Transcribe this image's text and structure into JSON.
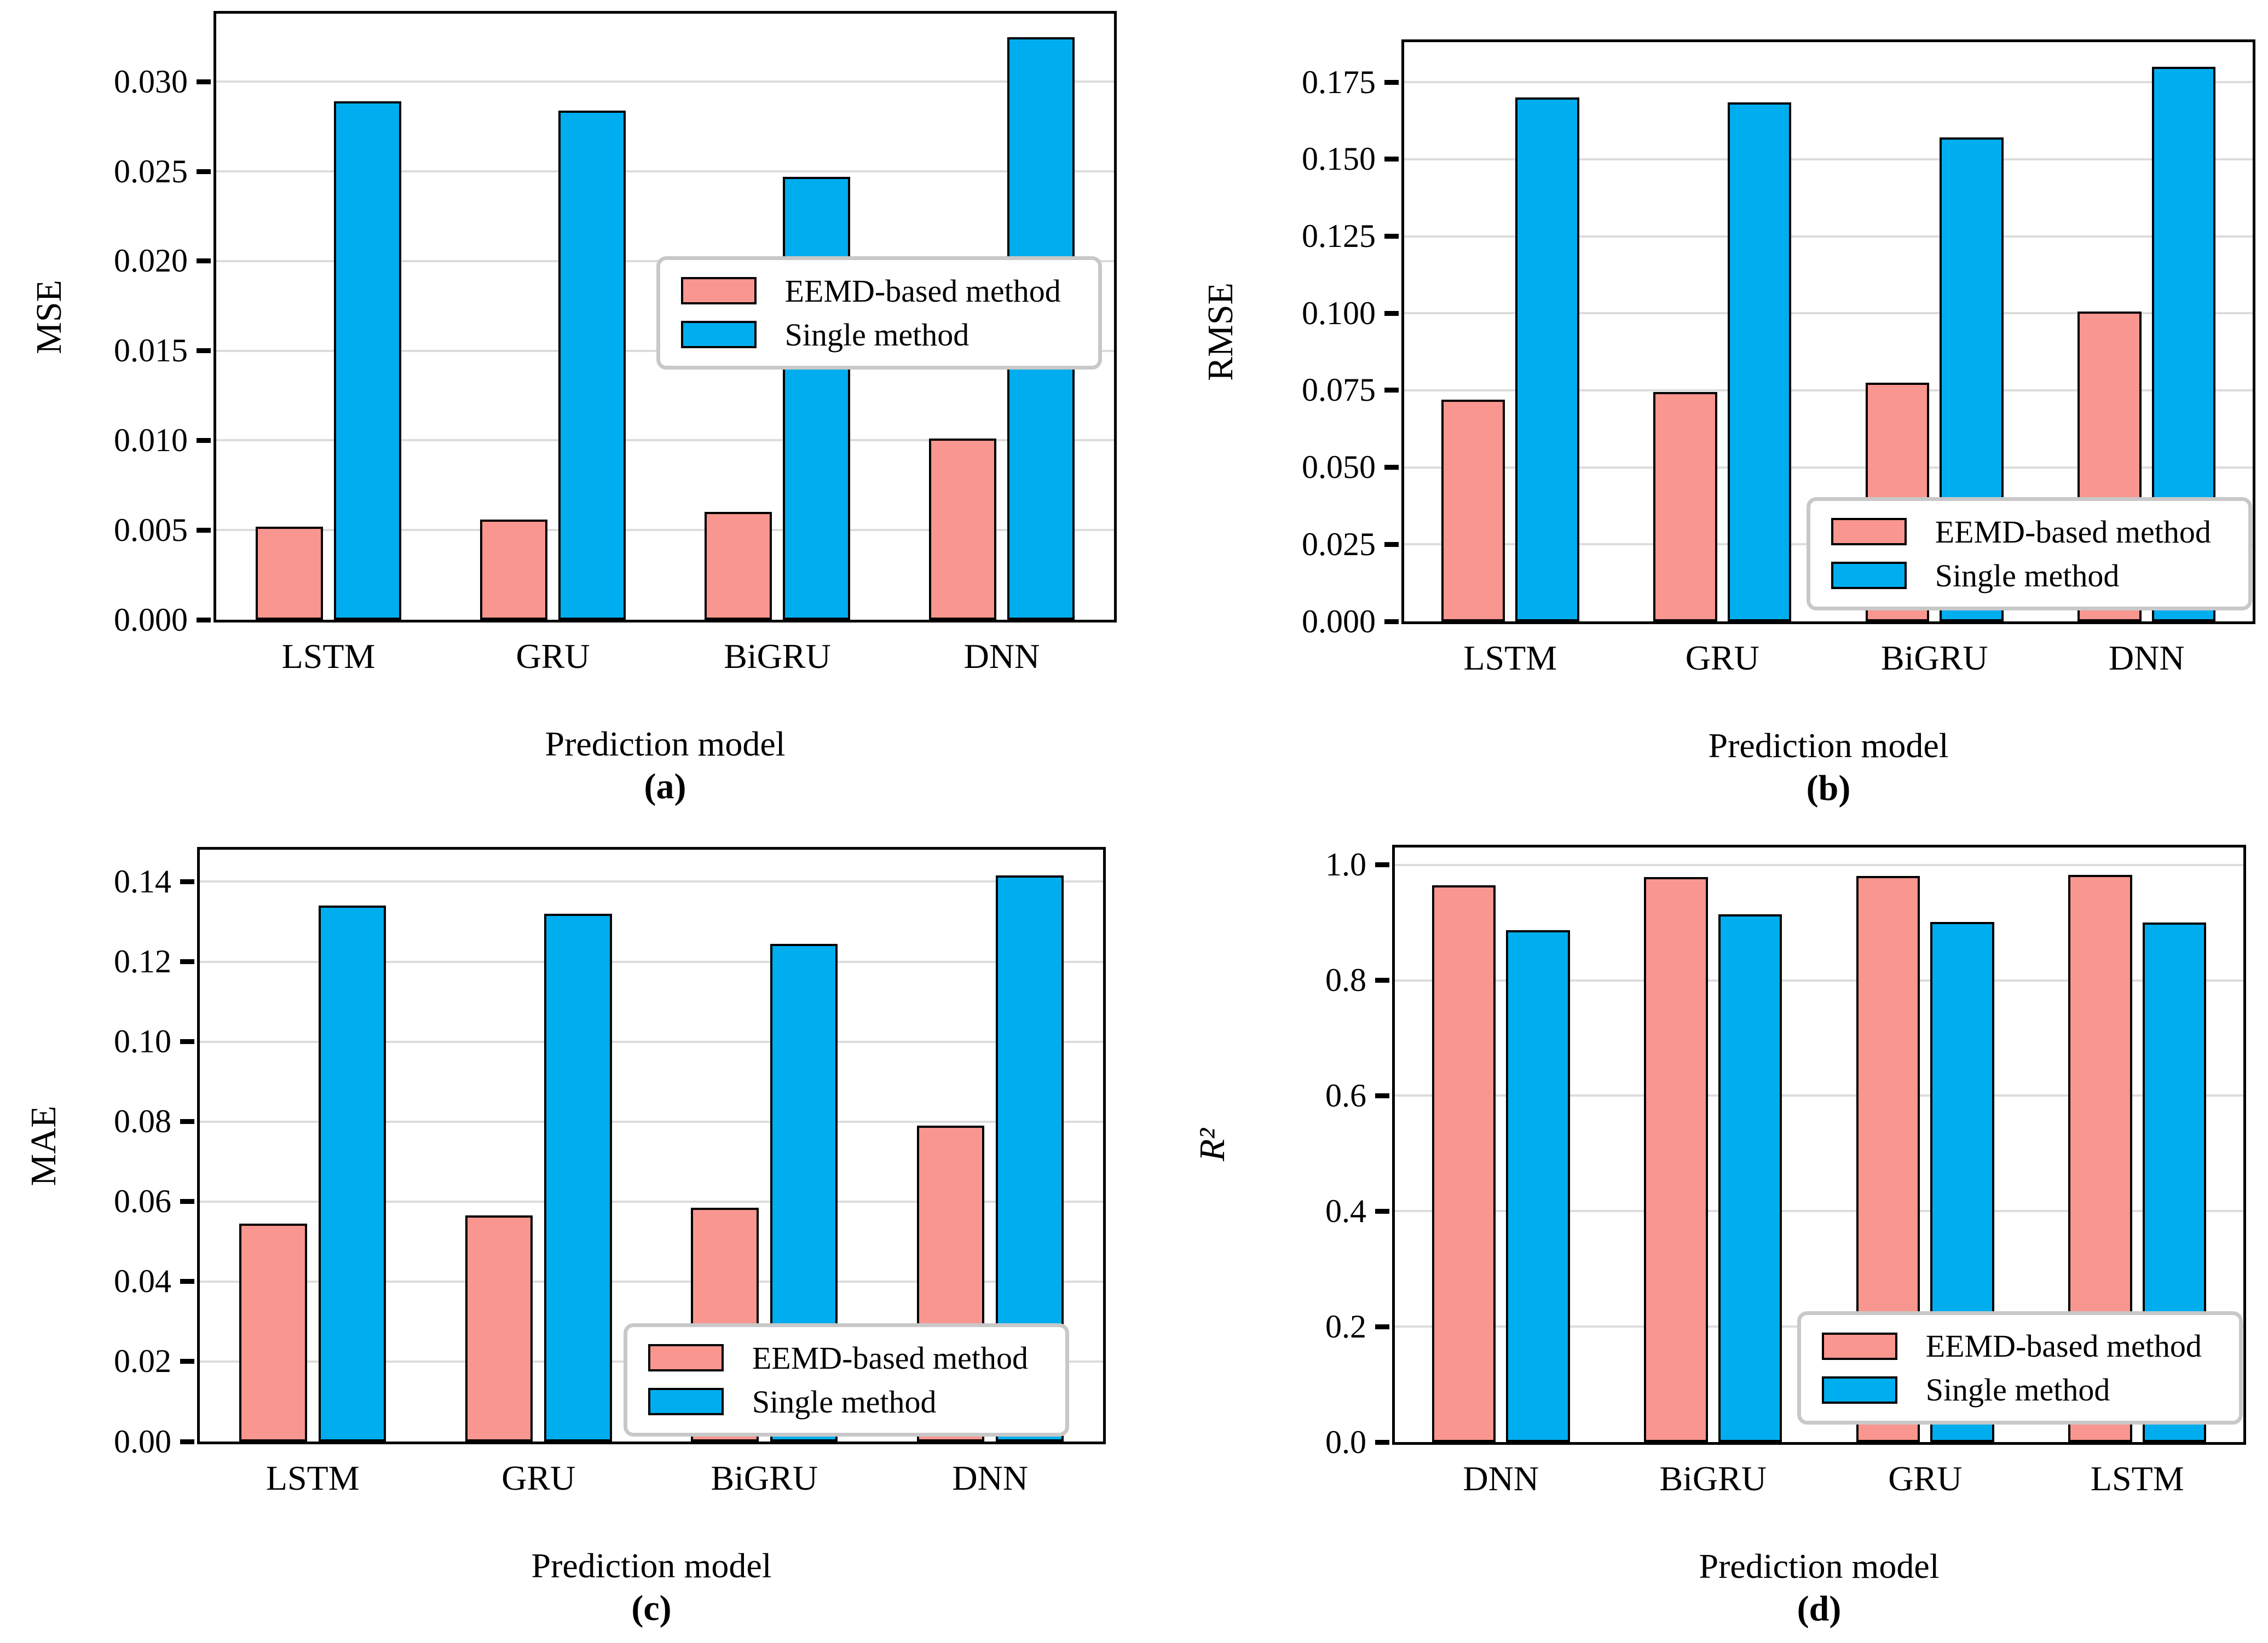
{
  "figure": {
    "xlabel": "Prediction model",
    "series_labels": [
      "EEMD-based method",
      "Single method"
    ],
    "colors": {
      "eemd": "#F9968F",
      "single": "#00AEEF",
      "grid": "#DCDCDC",
      "legend_border": "#C8C8C8",
      "bar_edge": "#000000"
    }
  },
  "chart_data": [
    {
      "id": "a",
      "type": "bar",
      "caption": "(a)",
      "ylabel": "MSE",
      "ylabel_italic": false,
      "xlabel": "Prediction model",
      "categories": [
        "LSTM",
        "GRU",
        "BiGRU",
        "DNN"
      ],
      "series": [
        {
          "name": "EEMD-based method",
          "values": [
            0.0052,
            0.0056,
            0.006,
            0.0101
          ]
        },
        {
          "name": "Single method",
          "values": [
            0.0289,
            0.0284,
            0.0247,
            0.0325
          ]
        }
      ],
      "ylim": [
        0,
        0.0338
      ],
      "yticks": [
        {
          "value": 0.0,
          "label": "0.000"
        },
        {
          "value": 0.005,
          "label": "0.005"
        },
        {
          "value": 0.01,
          "label": "0.010"
        },
        {
          "value": 0.015,
          "label": "0.015"
        },
        {
          "value": 0.02,
          "label": "0.020"
        },
        {
          "value": 0.025,
          "label": "0.025"
        },
        {
          "value": 0.03,
          "label": "0.030"
        }
      ],
      "grid": true,
      "legend_position": "center-right"
    },
    {
      "id": "b",
      "type": "bar",
      "caption": "(b)",
      "ylabel": "RMSE",
      "ylabel_italic": false,
      "xlabel": "Prediction model",
      "categories": [
        "LSTM",
        "GRU",
        "BiGRU",
        "DNN"
      ],
      "series": [
        {
          "name": "EEMD-based method",
          "values": [
            0.072,
            0.0745,
            0.0775,
            0.1005
          ]
        },
        {
          "name": "Single method",
          "values": [
            0.17,
            0.1685,
            0.157,
            0.18
          ]
        }
      ],
      "ylim": [
        0,
        0.188
      ],
      "yticks": [
        {
          "value": 0.0,
          "label": "0.000"
        },
        {
          "value": 0.025,
          "label": "0.025"
        },
        {
          "value": 0.05,
          "label": "0.050"
        },
        {
          "value": 0.075,
          "label": "0.075"
        },
        {
          "value": 0.1,
          "label": "0.100"
        },
        {
          "value": 0.125,
          "label": "0.125"
        },
        {
          "value": 0.15,
          "label": "0.150"
        },
        {
          "value": 0.175,
          "label": "0.175"
        }
      ],
      "grid": true,
      "legend_position": "bottom-right"
    },
    {
      "id": "c",
      "type": "bar",
      "caption": "(c)",
      "ylabel": "MAE",
      "ylabel_italic": false,
      "xlabel": "Prediction model",
      "categories": [
        "LSTM",
        "GRU",
        "BiGRU",
        "DNN"
      ],
      "series": [
        {
          "name": "EEMD-based method",
          "values": [
            0.0545,
            0.0565,
            0.0585,
            0.079
          ]
        },
        {
          "name": "Single method",
          "values": [
            0.134,
            0.132,
            0.1245,
            0.1415
          ]
        }
      ],
      "ylim": [
        0,
        0.148
      ],
      "yticks": [
        {
          "value": 0.0,
          "label": "0.00"
        },
        {
          "value": 0.02,
          "label": "0.02"
        },
        {
          "value": 0.04,
          "label": "0.04"
        },
        {
          "value": 0.06,
          "label": "0.06"
        },
        {
          "value": 0.08,
          "label": "0.08"
        },
        {
          "value": 0.1,
          "label": "0.10"
        },
        {
          "value": 0.12,
          "label": "0.12"
        },
        {
          "value": 0.14,
          "label": "0.14"
        }
      ],
      "grid": true,
      "legend_position": "bottom-right"
    },
    {
      "id": "d",
      "type": "bar",
      "caption": "(d)",
      "ylabel": "R²",
      "ylabel_italic": true,
      "xlabel": "Prediction model",
      "categories": [
        "DNN",
        "BiGRU",
        "GRU",
        "LSTM"
      ],
      "series": [
        {
          "name": "EEMD-based method",
          "values": [
            0.965,
            0.979,
            0.981,
            0.983
          ]
        },
        {
          "name": "Single method",
          "values": [
            0.887,
            0.914,
            0.901,
            0.9
          ]
        }
      ],
      "ylim": [
        0,
        1.03
      ],
      "yticks": [
        {
          "value": 0.0,
          "label": "0.0"
        },
        {
          "value": 0.2,
          "label": "0.2"
        },
        {
          "value": 0.4,
          "label": "0.4"
        },
        {
          "value": 0.6,
          "label": "0.6"
        },
        {
          "value": 0.8,
          "label": "0.8"
        },
        {
          "value": 1.0,
          "label": "1.0"
        }
      ],
      "grid": true,
      "legend_position": "bottom-right"
    }
  ]
}
